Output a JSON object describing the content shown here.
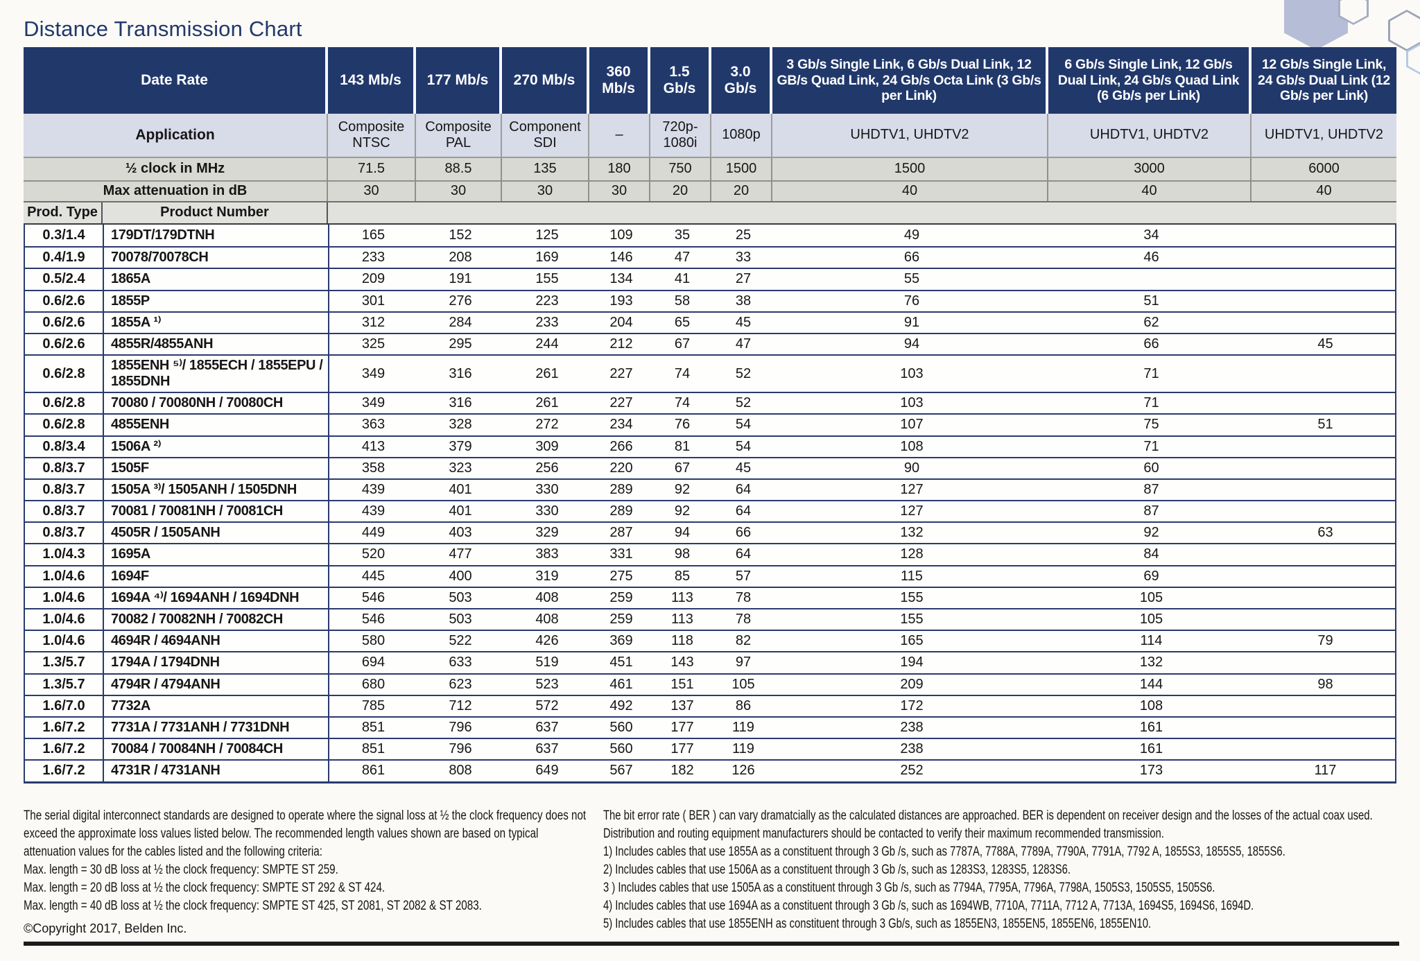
{
  "page": {
    "title": "Distance Transmission Chart",
    "copyright": "©Copyright 2017, Belden Inc."
  },
  "colors": {
    "header_navy": "#21386b",
    "application_row": "#d8dbe8",
    "gray_row": "#d9d9d4",
    "row_separator": "#2a3a6e",
    "hexagon_fill": "#b5bdd7"
  },
  "table": {
    "header": {
      "date_rate_label": "Date Rate",
      "application_label": "Application",
      "clock_label": "½ clock in MHz",
      "attenuation_label": "Max attenuation in dB",
      "prod_type_label": "Prod. Type",
      "product_number_label": "Product Number",
      "rate_columns": [
        "143 Mb/s",
        "177 Mb/s",
        "270 Mb/s",
        "360 Mb/s",
        "1.5 Gb/s",
        "3.0 Gb/s",
        "3 Gb/s Single Link, 6 Gb/s Dual Link, 12 GB/s Quad Link, 24 Gb/s Octa Link (3 Gb/s per Link)",
        "6 Gb/s Single Link, 12 Gb/s Dual Link, 24 Gb/s Quad Link (6 Gb/s per Link)",
        "12 Gb/s Single Link, 24 Gb/s Dual Link (12 Gb/s per Link)"
      ],
      "applications": [
        "Composite NTSC",
        "Composite PAL",
        "Component SDI",
        "–",
        "720p-1080i",
        "1080p",
        "UHDTV1, UHDTV2",
        "UHDTV1, UHDTV2",
        "UHDTV1, UHDTV2"
      ],
      "clock_values": [
        "71.5",
        "88.5",
        "135",
        "180",
        "750",
        "1500",
        "1500",
        "3000",
        "6000"
      ],
      "attenuation_values": [
        "30",
        "30",
        "30",
        "30",
        "20",
        "20",
        "40",
        "40",
        "40"
      ]
    },
    "rows": [
      {
        "prod_type": "0.3/1.4",
        "product": "179DT/179DTNH",
        "values": [
          "165",
          "152",
          "125",
          "109",
          "35",
          "25",
          "49",
          "34",
          ""
        ]
      },
      {
        "prod_type": "0.4/1.9",
        "product": "70078/70078CH",
        "values": [
          "233",
          "208",
          "169",
          "146",
          "47",
          "33",
          "66",
          "46",
          ""
        ]
      },
      {
        "prod_type": "0.5/2.4",
        "product": "1865A",
        "values": [
          "209",
          "191",
          "155",
          "134",
          "41",
          "27",
          "55",
          "",
          ""
        ]
      },
      {
        "prod_type": "0.6/2.6",
        "product": "1855P",
        "values": [
          "301",
          "276",
          "223",
          "193",
          "58",
          "38",
          "76",
          "51",
          ""
        ]
      },
      {
        "prod_type": "0.6/2.6",
        "product": "1855A ¹⁾",
        "values": [
          "312",
          "284",
          "233",
          "204",
          "65",
          "45",
          "91",
          "62",
          ""
        ]
      },
      {
        "prod_type": "0.6/2.6",
        "product": "4855R/4855ANH",
        "values": [
          "325",
          "295",
          "244",
          "212",
          "67",
          "47",
          "94",
          "66",
          "45"
        ]
      },
      {
        "prod_type": "0.6/2.8",
        "product": "1855ENH ⁵⁾/ 1855ECH / 1855EPU / 1855DNH",
        "values": [
          "349",
          "316",
          "261",
          "227",
          "74",
          "52",
          "103",
          "71",
          ""
        ]
      },
      {
        "prod_type": "0.6/2.8",
        "product": "70080 / 70080NH / 70080CH",
        "values": [
          "349",
          "316",
          "261",
          "227",
          "74",
          "52",
          "103",
          "71",
          ""
        ]
      },
      {
        "prod_type": "0.6/2.8",
        "product": "4855ENH",
        "values": [
          "363",
          "328",
          "272",
          "234",
          "76",
          "54",
          "107",
          "75",
          "51"
        ]
      },
      {
        "prod_type": "0.8/3.4",
        "product": "1506A ²⁾",
        "values": [
          "413",
          "379",
          "309",
          "266",
          "81",
          "54",
          "108",
          "71",
          ""
        ]
      },
      {
        "prod_type": "0.8/3.7",
        "product": "1505F",
        "values": [
          "358",
          "323",
          "256",
          "220",
          "67",
          "45",
          "90",
          "60",
          ""
        ]
      },
      {
        "prod_type": "0.8/3.7",
        "product": "1505A ³⁾/ 1505ANH / 1505DNH",
        "values": [
          "439",
          "401",
          "330",
          "289",
          "92",
          "64",
          "127",
          "87",
          ""
        ]
      },
      {
        "prod_type": "0.8/3.7",
        "product": "70081 / 70081NH / 70081CH",
        "values": [
          "439",
          "401",
          "330",
          "289",
          "92",
          "64",
          "127",
          "87",
          ""
        ]
      },
      {
        "prod_type": "0.8/3.7",
        "product": "4505R / 1505ANH",
        "values": [
          "449",
          "403",
          "329",
          "287",
          "94",
          "66",
          "132",
          "92",
          "63"
        ]
      },
      {
        "prod_type": "1.0/4.3",
        "product": "1695A",
        "values": [
          "520",
          "477",
          "383",
          "331",
          "98",
          "64",
          "128",
          "84",
          ""
        ]
      },
      {
        "prod_type": "1.0/4.6",
        "product": "1694F",
        "values": [
          "445",
          "400",
          "319",
          "275",
          "85",
          "57",
          "115",
          "69",
          ""
        ]
      },
      {
        "prod_type": "1.0/4.6",
        "product": "1694A ⁴⁾/ 1694ANH / 1694DNH",
        "values": [
          "546",
          "503",
          "408",
          "259",
          "113",
          "78",
          "155",
          "105",
          ""
        ]
      },
      {
        "prod_type": "1.0/4.6",
        "product": "70082 / 70082NH / 70082CH",
        "values": [
          "546",
          "503",
          "408",
          "259",
          "113",
          "78",
          "155",
          "105",
          ""
        ]
      },
      {
        "prod_type": "1.0/4.6",
        "product": "4694R / 4694ANH",
        "values": [
          "580",
          "522",
          "426",
          "369",
          "118",
          "82",
          "165",
          "114",
          "79"
        ]
      },
      {
        "prod_type": "1.3/5.7",
        "product": "1794A / 1794DNH",
        "values": [
          "694",
          "633",
          "519",
          "451",
          "143",
          "97",
          "194",
          "132",
          ""
        ]
      },
      {
        "prod_type": "1.3/5.7",
        "product": "4794R / 4794ANH",
        "values": [
          "680",
          "623",
          "523",
          "461",
          "151",
          "105",
          "209",
          "144",
          "98"
        ]
      },
      {
        "prod_type": "1.6/7.0",
        "product": "7732A",
        "values": [
          "785",
          "712",
          "572",
          "492",
          "137",
          "86",
          "172",
          "108",
          ""
        ]
      },
      {
        "prod_type": "1.6/7.2",
        "product": "7731A / 7731ANH / 7731DNH",
        "values": [
          "851",
          "796",
          "637",
          "560",
          "177",
          "119",
          "238",
          "161",
          ""
        ]
      },
      {
        "prod_type": "1.6/7.2",
        "product": "70084 / 70084NH / 70084CH",
        "values": [
          "851",
          "796",
          "637",
          "560",
          "177",
          "119",
          "238",
          "161",
          ""
        ]
      },
      {
        "prod_type": "1.6/7.2",
        "product": "4731R / 4731ANH",
        "values": [
          "861",
          "808",
          "649",
          "567",
          "182",
          "126",
          "252",
          "173",
          "117"
        ]
      }
    ]
  },
  "footnotes": {
    "left": {
      "para": "The serial digital interconnect standards are designed to operate where the signal loss at ½ the clock frequency does not exceed the approximate loss values listed below. The recommended length values shown are based on typical attenuation values for the cables listed and the following criteria:",
      "criteria": [
        "Max. length = 30 dB loss at ½ the clock frequency: SMPTE ST 259.",
        "Max. length = 20 dB loss at ½ the clock frequency: SMPTE ST 292 & ST 424.",
        "Max. length = 40 dB loss at ½ the clock frequency: SMPTE ST 425, ST 2081, ST 2082 & ST 2083."
      ]
    },
    "right": {
      "para": "The bit error rate ( BER ) can vary dramatcially as the calculated distances are approached. BER is dependent on receiver design and the losses of the actual coax used. Distribution and routing equipment manufacturers should be contacted to verify their maximum recommended transmission.",
      "notes": [
        "1) Includes cables that use 1855A as a constituent through 3 Gb /s, such as 7787A, 7788A, 7789A, 7790A, 7791A, 7792 A, 1855S3, 1855S5, 1855S6.",
        "2) Includes cables that use 1506A as a constituent through 3 Gb /s, such as 1283S3, 1283S5, 1283S6.",
        "3 ) Includes cables that use 1505A as a constituent through 3 Gb /s, such as 7794A, 7795A, 7796A, 7798A, 1505S3, 1505S5, 1505S6.",
        "4) Includes cables that use 1694A as a constituent through 3 Gb /s, such as 1694WB, 7710A, 7711A, 7712 A, 7713A, 1694S5, 1694S6, 1694D.",
        "5) Includes cables that use 1855ENH as constituent through 3 Gb/s, such as 1855EN3, 1855EN5, 1855EN6, 1855EN10."
      ]
    }
  }
}
